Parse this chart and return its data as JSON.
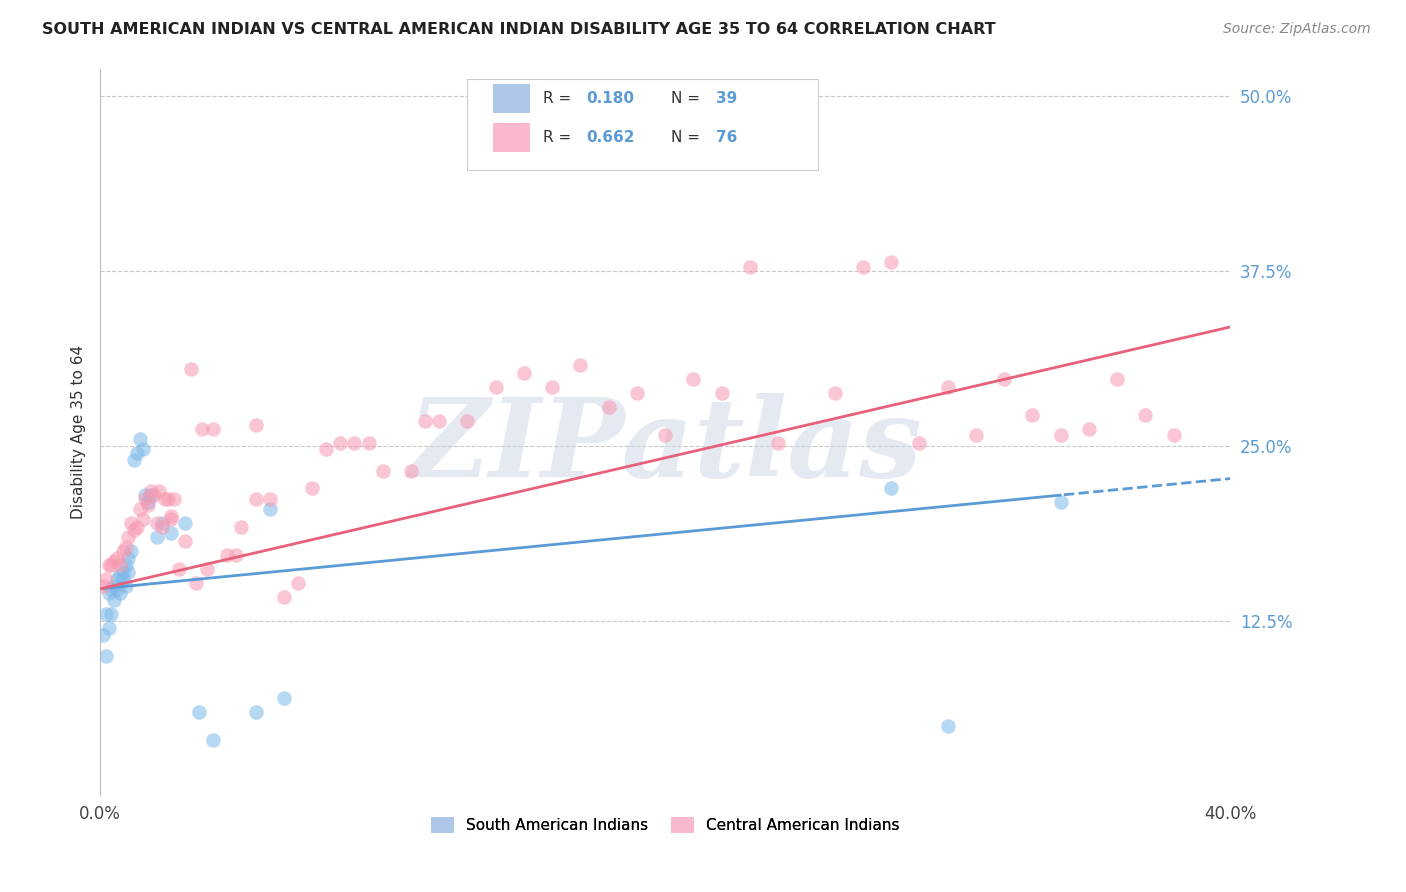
{
  "title": "SOUTH AMERICAN INDIAN VS CENTRAL AMERICAN INDIAN DISABILITY AGE 35 TO 64 CORRELATION CHART",
  "source": "Source: ZipAtlas.com",
  "ylabel": "Disability Age 35 to 64",
  "legend_color1": "#aec6e8",
  "legend_color2": "#f9b8cb",
  "blue_color": "#7db8e8",
  "pink_color": "#f898b0",
  "blue_line_color": "#5b9bd5",
  "pink_line_color": "#e8607a",
  "watermark": "ZIPatlas",
  "background_color": "#ffffff",
  "grid_color": "#c8c8c8",
  "xlim": [
    0.0,
    0.4
  ],
  "ylim": [
    0.0,
    0.52
  ],
  "yticks": [
    0.125,
    0.25,
    0.375,
    0.5
  ],
  "xticks": [
    0.0,
    0.4
  ],
  "blue_scatter_x": [
    0.001,
    0.002,
    0.002,
    0.003,
    0.003,
    0.004,
    0.004,
    0.005,
    0.005,
    0.006,
    0.006,
    0.007,
    0.007,
    0.008,
    0.008,
    0.009,
    0.009,
    0.01,
    0.01,
    0.011,
    0.012,
    0.013,
    0.014,
    0.015,
    0.016,
    0.017,
    0.018,
    0.02,
    0.022,
    0.025,
    0.03,
    0.035,
    0.04,
    0.055,
    0.06,
    0.065,
    0.28,
    0.3,
    0.34
  ],
  "blue_scatter_y": [
    0.115,
    0.1,
    0.13,
    0.12,
    0.145,
    0.13,
    0.148,
    0.15,
    0.14,
    0.155,
    0.148,
    0.158,
    0.145,
    0.16,
    0.155,
    0.165,
    0.15,
    0.17,
    0.16,
    0.175,
    0.24,
    0.245,
    0.255,
    0.248,
    0.215,
    0.21,
    0.215,
    0.185,
    0.195,
    0.188,
    0.195,
    0.06,
    0.04,
    0.06,
    0.205,
    0.07,
    0.22,
    0.05,
    0.21
  ],
  "pink_scatter_x": [
    0.001,
    0.002,
    0.003,
    0.004,
    0.005,
    0.006,
    0.007,
    0.008,
    0.009,
    0.01,
    0.011,
    0.012,
    0.013,
    0.014,
    0.015,
    0.016,
    0.017,
    0.018,
    0.019,
    0.02,
    0.021,
    0.022,
    0.023,
    0.024,
    0.025,
    0.026,
    0.028,
    0.03,
    0.032,
    0.034,
    0.036,
    0.038,
    0.04,
    0.045,
    0.048,
    0.05,
    0.055,
    0.06,
    0.065,
    0.07,
    0.08,
    0.09,
    0.1,
    0.11,
    0.12,
    0.13,
    0.14,
    0.15,
    0.16,
    0.17,
    0.18,
    0.19,
    0.2,
    0.21,
    0.22,
    0.23,
    0.24,
    0.26,
    0.27,
    0.28,
    0.29,
    0.3,
    0.31,
    0.32,
    0.33,
    0.34,
    0.35,
    0.36,
    0.37,
    0.38,
    0.025,
    0.055,
    0.075,
    0.085,
    0.095,
    0.115
  ],
  "pink_scatter_y": [
    0.15,
    0.155,
    0.165,
    0.165,
    0.168,
    0.17,
    0.165,
    0.175,
    0.178,
    0.185,
    0.195,
    0.19,
    0.192,
    0.205,
    0.198,
    0.212,
    0.208,
    0.218,
    0.215,
    0.195,
    0.218,
    0.192,
    0.212,
    0.212,
    0.198,
    0.212,
    0.162,
    0.182,
    0.305,
    0.152,
    0.262,
    0.162,
    0.262,
    0.172,
    0.172,
    0.192,
    0.212,
    0.212,
    0.142,
    0.152,
    0.248,
    0.252,
    0.232,
    0.232,
    0.268,
    0.268,
    0.292,
    0.302,
    0.292,
    0.308,
    0.278,
    0.288,
    0.258,
    0.298,
    0.288,
    0.378,
    0.252,
    0.288,
    0.378,
    0.382,
    0.252,
    0.292,
    0.258,
    0.298,
    0.272,
    0.258,
    0.262,
    0.298,
    0.272,
    0.258,
    0.2,
    0.265,
    0.22,
    0.252,
    0.252,
    0.268
  ]
}
